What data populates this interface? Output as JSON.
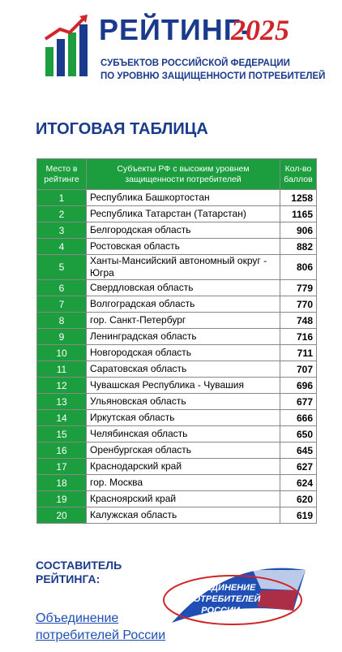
{
  "header": {
    "title_word": "РЕЙТИНГ-",
    "title_year": "2025",
    "subtitle_lines": [
      "СУБЪЕКТОВ РОССИЙСКОЙ ФЕДЕРАЦИИ",
      "ПО УРОВНЮ ЗАЩИЩЕННОСТИ ПОТРЕБИТЕЛЕЙ"
    ]
  },
  "section_title": "ИТОГОВАЯ ТАБЛИЦА",
  "table": {
    "columns": [
      "Место в рейтинге",
      "Субъекты РФ с высоким уровнем защищенности потребителей",
      "Кол-во баллов"
    ],
    "rows": [
      [
        1,
        "Республика Башкортостан",
        1258
      ],
      [
        2,
        "Республика Татарстан (Татарстан)",
        1165
      ],
      [
        3,
        "Белгородская область",
        906
      ],
      [
        4,
        "Ростовская область",
        882
      ],
      [
        5,
        "Ханты-Мансийский автономный округ - Югра",
        806
      ],
      [
        6,
        "Свердловская область",
        779
      ],
      [
        7,
        "Волгоградская область",
        770
      ],
      [
        8,
        "гор. Санкт-Петербург",
        748
      ],
      [
        9,
        "Ленинградская область",
        716
      ],
      [
        10,
        "Новгородская область",
        711
      ],
      [
        11,
        "Саратовская область",
        707
      ],
      [
        12,
        "Чувашская Республика - Чувашия",
        696
      ],
      [
        13,
        "Ульяновская область",
        677
      ],
      [
        14,
        "Иркутская область",
        666
      ],
      [
        15,
        "Челябинская область",
        650
      ],
      [
        16,
        "Оренбургская область",
        645
      ],
      [
        17,
        "Краснодарский край",
        627
      ],
      [
        18,
        "гор. Москва",
        624
      ],
      [
        19,
        "Красноярский край",
        620
      ],
      [
        20,
        "Калужская область",
        619
      ]
    ]
  },
  "footer": {
    "compiler_label": "СОСТАВИТЕЛЬ РЕЙТИНГА:",
    "compiler_link": "Объединение потребителей России",
    "logo_lines": [
      "ОБЪЕДИНЕНИЕ",
      "ПОТРЕБИТЕЛЕЙ",
      "РОССИИ"
    ]
  }
}
